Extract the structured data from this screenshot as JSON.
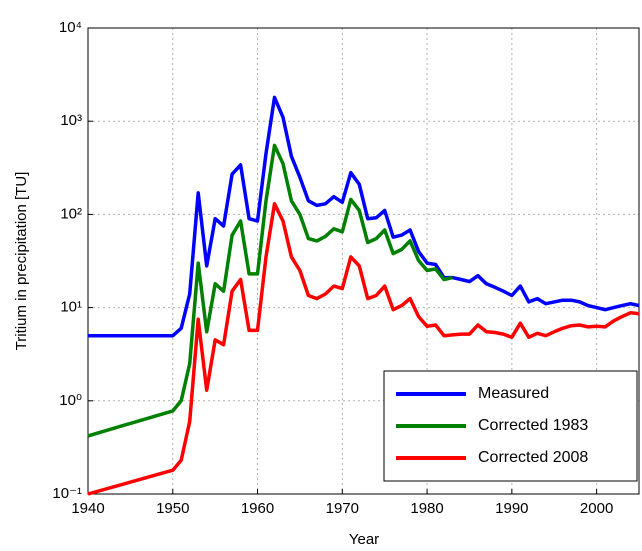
{
  "chart_data": {
    "type": "line",
    "xlabel": "Year",
    "ylabel": "Tritium in precipitation [TU]",
    "log_y": true,
    "grid": true,
    "legend": "lower right",
    "xlim": [
      1940,
      2005
    ],
    "xticks": [
      1940,
      1950,
      1960,
      1970,
      1980,
      1990,
      2000
    ],
    "ylim": [
      0.1,
      10000
    ],
    "yticks": [
      {
        "value": 0.1,
        "label": "10⁻¹"
      },
      {
        "value": 1,
        "label": "10⁰"
      },
      {
        "value": 10,
        "label": "10¹"
      },
      {
        "value": 100,
        "label": "10²"
      },
      {
        "value": 1000,
        "label": "10³"
      },
      {
        "value": 10000,
        "label": "10⁴"
      }
    ],
    "series": [
      {
        "name": "Measured",
        "color": "#0000ff",
        "x": [
          1940,
          1950,
          1951,
          1952,
          1953,
          1954,
          1955,
          1956,
          1957,
          1958,
          1959,
          1960,
          1961,
          1962,
          1963,
          1964,
          1965,
          1966,
          1967,
          1968,
          1969,
          1970,
          1971,
          1972,
          1973,
          1974,
          1975,
          1976,
          1977,
          1978,
          1979,
          1980,
          1981,
          1982,
          1983,
          1984,
          1985,
          1986,
          1987,
          1988,
          1989,
          1990,
          1991,
          1992,
          1993,
          1994,
          1995,
          1996,
          1997,
          1998,
          1999,
          2000,
          2001,
          2002,
          2003,
          2004,
          2005
        ],
        "values": [
          5,
          5,
          6,
          14,
          170,
          28,
          90,
          75,
          270,
          340,
          90,
          85,
          450,
          1800,
          1100,
          420,
          250,
          140,
          125,
          130,
          155,
          135,
          280,
          210,
          90,
          92,
          110,
          57,
          60,
          68,
          40,
          30,
          29,
          21,
          21,
          20,
          19,
          22,
          18,
          16.5,
          15,
          13.5,
          17,
          11.5,
          12.5,
          11,
          11.5,
          12,
          12,
          11.5,
          10.5,
          10,
          9.5,
          10,
          10.5,
          11,
          10.5
        ]
      },
      {
        "name": "Corrected 1983",
        "color": "#008000",
        "x": [
          1940,
          1950,
          1951,
          1952,
          1953,
          1954,
          1955,
          1956,
          1957,
          1958,
          1959,
          1960,
          1961,
          1962,
          1963,
          1964,
          1965,
          1966,
          1967,
          1968,
          1969,
          1970,
          1971,
          1972,
          1973,
          1974,
          1975,
          1976,
          1977,
          1978,
          1979,
          1980,
          1981,
          1982,
          1983
        ],
        "values": [
          0.42,
          0.78,
          1.0,
          2.5,
          30,
          5.5,
          18,
          15,
          60,
          85,
          23,
          23,
          140,
          550,
          350,
          140,
          100,
          55,
          52,
          58,
          70,
          65,
          145,
          110,
          50,
          55,
          68,
          38,
          42,
          52,
          32,
          25,
          26,
          20,
          21
        ]
      },
      {
        "name": "Corrected 2008",
        "color": "#ff0000",
        "x": [
          1940,
          1950,
          1951,
          1952,
          1953,
          1954,
          1955,
          1956,
          1957,
          1958,
          1959,
          1960,
          1961,
          1962,
          1963,
          1964,
          1965,
          1966,
          1967,
          1968,
          1969,
          1970,
          1971,
          1972,
          1973,
          1974,
          1975,
          1976,
          1977,
          1978,
          1979,
          1980,
          1981,
          1982,
          1983,
          1984,
          1985,
          1986,
          1987,
          1988,
          1989,
          1990,
          1991,
          1992,
          1993,
          1994,
          1995,
          1996,
          1997,
          1998,
          1999,
          2000,
          2001,
          2002,
          2003,
          2004,
          2005
        ],
        "values": [
          0.1,
          0.18,
          0.23,
          0.6,
          7.5,
          1.3,
          4.5,
          4,
          15,
          20,
          5.7,
          5.7,
          35,
          130,
          85,
          35,
          25,
          13.5,
          12.5,
          14,
          17,
          16,
          35,
          28,
          12.5,
          13.5,
          17,
          9.5,
          10.5,
          12.5,
          8,
          6.3,
          6.5,
          5,
          5.1,
          5.2,
          5.2,
          6.5,
          5.5,
          5.4,
          5.2,
          4.8,
          6.8,
          4.8,
          5.3,
          5,
          5.5,
          6,
          6.4,
          6.5,
          6.2,
          6.3,
          6.2,
          7.2,
          8,
          8.8,
          8.6
        ]
      }
    ]
  }
}
